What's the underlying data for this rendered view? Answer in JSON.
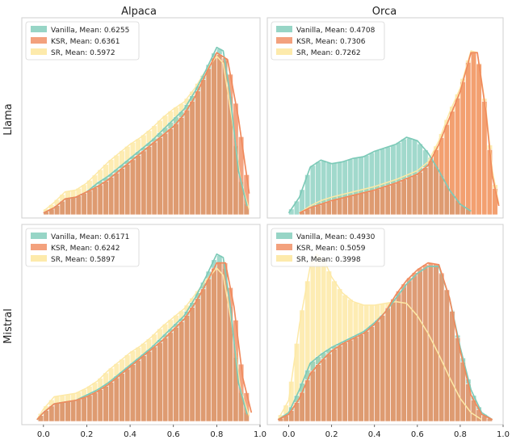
{
  "figure": {
    "column_titles": [
      "Alpaca",
      "Orca"
    ],
    "row_labels": [
      "Llama",
      "Mistral"
    ],
    "colors": {
      "Vanilla": "#7dcab8",
      "KSR": "#f08a5d",
      "SR": "#fde9a6"
    }
  },
  "chart_data": [
    {
      "type": "histogram+kde",
      "title": "Alpaca",
      "row": "Llama",
      "xlim": [
        -0.1,
        1.0
      ],
      "x_ticks": [
        "0.0",
        "0.2",
        "0.4",
        "0.6",
        "0.8",
        "1.0"
      ],
      "legend_position": "top-left",
      "series": [
        {
          "name": "Vanilla",
          "label": "Vanilla, Mean: 0.6255",
          "points": [
            [
              0.0,
              0.01
            ],
            [
              0.05,
              0.04
            ],
            [
              0.1,
              0.09
            ],
            [
              0.15,
              0.1
            ],
            [
              0.2,
              0.13
            ],
            [
              0.25,
              0.18
            ],
            [
              0.3,
              0.22
            ],
            [
              0.35,
              0.27
            ],
            [
              0.4,
              0.32
            ],
            [
              0.45,
              0.37
            ],
            [
              0.5,
              0.42
            ],
            [
              0.55,
              0.48
            ],
            [
              0.6,
              0.54
            ],
            [
              0.65,
              0.6
            ],
            [
              0.7,
              0.7
            ],
            [
              0.75,
              0.82
            ],
            [
              0.8,
              0.95
            ],
            [
              0.83,
              0.93
            ],
            [
              0.86,
              0.7
            ],
            [
              0.9,
              0.25
            ],
            [
              0.94,
              0.05
            ]
          ]
        },
        {
          "name": "KSR",
          "label": "KSR, Mean: 0.6361",
          "points": [
            [
              0.0,
              0.01
            ],
            [
              0.05,
              0.04
            ],
            [
              0.1,
              0.09
            ],
            [
              0.15,
              0.1
            ],
            [
              0.2,
              0.13
            ],
            [
              0.25,
              0.16
            ],
            [
              0.3,
              0.2
            ],
            [
              0.35,
              0.25
            ],
            [
              0.4,
              0.3
            ],
            [
              0.45,
              0.35
            ],
            [
              0.5,
              0.4
            ],
            [
              0.55,
              0.45
            ],
            [
              0.6,
              0.5
            ],
            [
              0.65,
              0.57
            ],
            [
              0.7,
              0.67
            ],
            [
              0.75,
              0.8
            ],
            [
              0.8,
              0.92
            ],
            [
              0.85,
              0.88
            ],
            [
              0.9,
              0.55
            ],
            [
              0.95,
              0.12
            ]
          ]
        },
        {
          "name": "SR",
          "label": "SR, Mean: 0.5972",
          "points": [
            [
              0.0,
              0.02
            ],
            [
              0.05,
              0.07
            ],
            [
              0.1,
              0.13
            ],
            [
              0.15,
              0.14
            ],
            [
              0.2,
              0.18
            ],
            [
              0.25,
              0.24
            ],
            [
              0.3,
              0.3
            ],
            [
              0.35,
              0.35
            ],
            [
              0.4,
              0.4
            ],
            [
              0.45,
              0.44
            ],
            [
              0.5,
              0.49
            ],
            [
              0.55,
              0.55
            ],
            [
              0.6,
              0.6
            ],
            [
              0.65,
              0.64
            ],
            [
              0.7,
              0.72
            ],
            [
              0.75,
              0.82
            ],
            [
              0.8,
              0.9
            ],
            [
              0.83,
              0.86
            ],
            [
              0.87,
              0.55
            ],
            [
              0.91,
              0.2
            ],
            [
              0.95,
              0.03
            ]
          ]
        }
      ]
    },
    {
      "type": "histogram+kde",
      "title": "Orca",
      "row": "Llama",
      "xlim": [
        -0.1,
        1.0
      ],
      "x_ticks": [
        "0.0",
        "0.2",
        "0.4",
        "0.6",
        "0.8",
        "1.0"
      ],
      "legend_position": "top-left",
      "series": [
        {
          "name": "Vanilla",
          "label": "Vanilla, Mean: 0.4708",
          "points": [
            [
              0.0,
              0.01
            ],
            [
              0.05,
              0.1
            ],
            [
              0.1,
              0.27
            ],
            [
              0.15,
              0.31
            ],
            [
              0.2,
              0.29
            ],
            [
              0.25,
              0.3
            ],
            [
              0.3,
              0.32
            ],
            [
              0.35,
              0.33
            ],
            [
              0.4,
              0.36
            ],
            [
              0.45,
              0.38
            ],
            [
              0.5,
              0.4
            ],
            [
              0.55,
              0.44
            ],
            [
              0.6,
              0.42
            ],
            [
              0.65,
              0.35
            ],
            [
              0.7,
              0.25
            ],
            [
              0.75,
              0.14
            ],
            [
              0.8,
              0.06
            ],
            [
              0.85,
              0.02
            ]
          ]
        },
        {
          "name": "KSR",
          "label": "KSR, Mean: 0.7306",
          "points": [
            [
              0.05,
              0.01
            ],
            [
              0.1,
              0.04
            ],
            [
              0.15,
              0.06
            ],
            [
              0.2,
              0.08
            ],
            [
              0.3,
              0.11
            ],
            [
              0.4,
              0.14
            ],
            [
              0.5,
              0.18
            ],
            [
              0.6,
              0.23
            ],
            [
              0.65,
              0.28
            ],
            [
              0.7,
              0.4
            ],
            [
              0.75,
              0.55
            ],
            [
              0.8,
              0.7
            ],
            [
              0.85,
              0.92
            ],
            [
              0.88,
              0.92
            ],
            [
              0.92,
              0.58
            ],
            [
              0.95,
              0.22
            ],
            [
              0.98,
              0.05
            ]
          ]
        },
        {
          "name": "SR",
          "label": "SR, Mean: 0.7262",
          "points": [
            [
              0.05,
              0.01
            ],
            [
              0.1,
              0.05
            ],
            [
              0.15,
              0.08
            ],
            [
              0.2,
              0.1
            ],
            [
              0.3,
              0.13
            ],
            [
              0.4,
              0.16
            ],
            [
              0.5,
              0.2
            ],
            [
              0.6,
              0.25
            ],
            [
              0.65,
              0.3
            ],
            [
              0.7,
              0.42
            ],
            [
              0.75,
              0.58
            ],
            [
              0.8,
              0.72
            ],
            [
              0.85,
              0.93
            ],
            [
              0.88,
              0.92
            ],
            [
              0.92,
              0.6
            ],
            [
              0.95,
              0.25
            ],
            [
              0.98,
              0.06
            ]
          ]
        }
      ]
    },
    {
      "type": "histogram+kde",
      "title": "Alpaca",
      "row": "Mistral",
      "xlim": [
        -0.1,
        1.0
      ],
      "x_ticks": [
        "0.0",
        "0.2",
        "0.4",
        "0.6",
        "0.8",
        "1.0"
      ],
      "legend_position": "top-left",
      "series": [
        {
          "name": "Vanilla",
          "label": "Vanilla, Mean: 0.6171",
          "points": [
            [
              -0.03,
              0.01
            ],
            [
              0.0,
              0.05
            ],
            [
              0.05,
              0.1
            ],
            [
              0.1,
              0.11
            ],
            [
              0.15,
              0.12
            ],
            [
              0.2,
              0.15
            ],
            [
              0.25,
              0.18
            ],
            [
              0.3,
              0.22
            ],
            [
              0.35,
              0.27
            ],
            [
              0.4,
              0.32
            ],
            [
              0.45,
              0.37
            ],
            [
              0.5,
              0.42
            ],
            [
              0.55,
              0.48
            ],
            [
              0.6,
              0.54
            ],
            [
              0.65,
              0.6
            ],
            [
              0.7,
              0.7
            ],
            [
              0.75,
              0.82
            ],
            [
              0.8,
              0.95
            ],
            [
              0.83,
              0.93
            ],
            [
              0.86,
              0.68
            ],
            [
              0.9,
              0.22
            ],
            [
              0.94,
              0.04
            ]
          ]
        },
        {
          "name": "KSR",
          "label": "KSR, Mean: 0.6242",
          "points": [
            [
              -0.03,
              0.01
            ],
            [
              0.0,
              0.05
            ],
            [
              0.05,
              0.1
            ],
            [
              0.1,
              0.11
            ],
            [
              0.15,
              0.12
            ],
            [
              0.2,
              0.14
            ],
            [
              0.25,
              0.17
            ],
            [
              0.3,
              0.21
            ],
            [
              0.35,
              0.26
            ],
            [
              0.4,
              0.31
            ],
            [
              0.45,
              0.36
            ],
            [
              0.5,
              0.41
            ],
            [
              0.55,
              0.46
            ],
            [
              0.6,
              0.52
            ],
            [
              0.65,
              0.58
            ],
            [
              0.7,
              0.67
            ],
            [
              0.75,
              0.78
            ],
            [
              0.8,
              0.9
            ],
            [
              0.84,
              0.9
            ],
            [
              0.88,
              0.65
            ],
            [
              0.92,
              0.25
            ],
            [
              0.96,
              0.05
            ]
          ]
        },
        {
          "name": "SR",
          "label": "SR, Mean: 0.5897",
          "points": [
            [
              -0.03,
              0.01
            ],
            [
              0.0,
              0.07
            ],
            [
              0.05,
              0.14
            ],
            [
              0.1,
              0.15
            ],
            [
              0.15,
              0.16
            ],
            [
              0.2,
              0.19
            ],
            [
              0.25,
              0.23
            ],
            [
              0.3,
              0.29
            ],
            [
              0.35,
              0.34
            ],
            [
              0.4,
              0.39
            ],
            [
              0.45,
              0.43
            ],
            [
              0.5,
              0.48
            ],
            [
              0.55,
              0.54
            ],
            [
              0.6,
              0.59
            ],
            [
              0.65,
              0.64
            ],
            [
              0.7,
              0.72
            ],
            [
              0.75,
              0.8
            ],
            [
              0.8,
              0.87
            ],
            [
              0.83,
              0.83
            ],
            [
              0.87,
              0.55
            ],
            [
              0.91,
              0.18
            ],
            [
              0.95,
              0.03
            ]
          ]
        }
      ]
    },
    {
      "type": "histogram+kde",
      "title": "Orca",
      "row": "Mistral",
      "xlim": [
        -0.1,
        1.0
      ],
      "x_ticks": [
        "0.0",
        "0.2",
        "0.4",
        "0.6",
        "0.8",
        "1.0"
      ],
      "legend_position": "top-left",
      "series": [
        {
          "name": "Vanilla",
          "label": "Vanilla, Mean: 0.4930",
          "points": [
            [
              -0.05,
              0.01
            ],
            [
              0.0,
              0.05
            ],
            [
              0.05,
              0.18
            ],
            [
              0.1,
              0.33
            ],
            [
              0.15,
              0.38
            ],
            [
              0.2,
              0.42
            ],
            [
              0.25,
              0.45
            ],
            [
              0.3,
              0.48
            ],
            [
              0.35,
              0.51
            ],
            [
              0.4,
              0.56
            ],
            [
              0.45,
              0.62
            ],
            [
              0.5,
              0.7
            ],
            [
              0.55,
              0.78
            ],
            [
              0.6,
              0.84
            ],
            [
              0.65,
              0.88
            ],
            [
              0.7,
              0.88
            ],
            [
              0.75,
              0.7
            ],
            [
              0.8,
              0.42
            ],
            [
              0.85,
              0.18
            ],
            [
              0.9,
              0.05
            ],
            [
              0.95,
              0.01
            ]
          ]
        },
        {
          "name": "KSR",
          "label": "KSR, Mean: 0.5059",
          "points": [
            [
              -0.05,
              0.01
            ],
            [
              0.0,
              0.04
            ],
            [
              0.05,
              0.13
            ],
            [
              0.1,
              0.27
            ],
            [
              0.15,
              0.34
            ],
            [
              0.2,
              0.4
            ],
            [
              0.25,
              0.44
            ],
            [
              0.3,
              0.47
            ],
            [
              0.35,
              0.5
            ],
            [
              0.4,
              0.55
            ],
            [
              0.45,
              0.62
            ],
            [
              0.5,
              0.72
            ],
            [
              0.55,
              0.8
            ],
            [
              0.6,
              0.86
            ],
            [
              0.65,
              0.9
            ],
            [
              0.7,
              0.89
            ],
            [
              0.75,
              0.7
            ],
            [
              0.8,
              0.4
            ],
            [
              0.85,
              0.15
            ],
            [
              0.9,
              0.04
            ],
            [
              0.95,
              0.01
            ]
          ]
        },
        {
          "name": "SR",
          "label": "SR, Mean: 0.3998",
          "points": [
            [
              -0.05,
              0.01
            ],
            [
              0.0,
              0.12
            ],
            [
              0.05,
              0.55
            ],
            [
              0.1,
              0.88
            ],
            [
              0.13,
              0.95
            ],
            [
              0.17,
              0.9
            ],
            [
              0.2,
              0.82
            ],
            [
              0.25,
              0.73
            ],
            [
              0.3,
              0.68
            ],
            [
              0.35,
              0.66
            ],
            [
              0.4,
              0.66
            ],
            [
              0.45,
              0.67
            ],
            [
              0.5,
              0.68
            ],
            [
              0.55,
              0.67
            ],
            [
              0.6,
              0.6
            ],
            [
              0.65,
              0.5
            ],
            [
              0.7,
              0.38
            ],
            [
              0.75,
              0.25
            ],
            [
              0.8,
              0.13
            ],
            [
              0.85,
              0.05
            ],
            [
              0.9,
              0.01
            ]
          ]
        }
      ]
    }
  ]
}
